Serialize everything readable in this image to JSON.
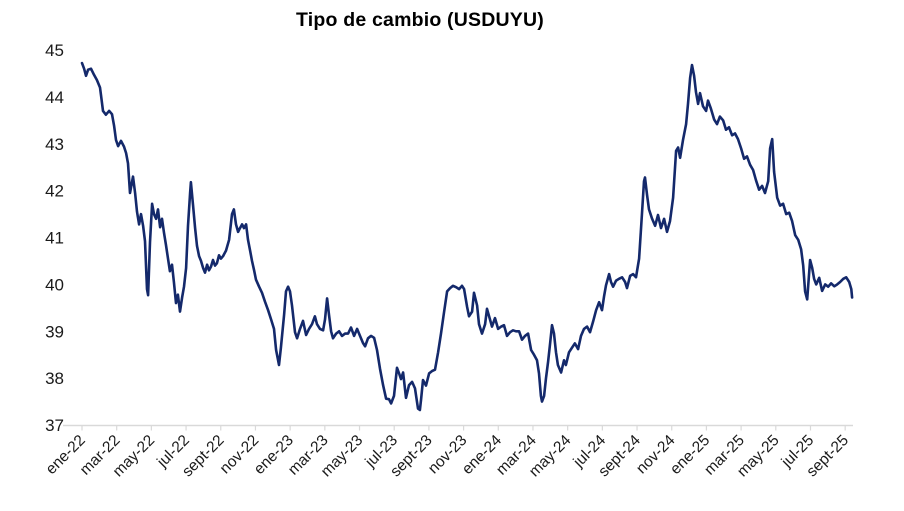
{
  "chart_data": {
    "type": "line",
    "title": "Tipo de cambio (USDUYU)",
    "xlabel": "",
    "ylabel": "",
    "ylim": [
      37,
      45
    ],
    "y_ticks": [
      37,
      38,
      39,
      40,
      41,
      42,
      43,
      44,
      45
    ],
    "x_tick_labels": [
      "ene-22",
      "mar-22",
      "may-22",
      "jul-22",
      "sept-22",
      "nov-22",
      "ene-23",
      "mar-23",
      "may-23",
      "jul-23",
      "sept-23",
      "nov-23",
      "ene-24",
      "mar-24",
      "may-24",
      "jul-24",
      "sept-24",
      "nov-24",
      "ene-25",
      "mar-25",
      "may-25",
      "jul-25",
      "sept-25"
    ],
    "x_unit": "months since ene-22, labels every 2 months",
    "grid": "off",
    "legend": "none",
    "axis_color": "#D9D9D9",
    "series": [
      {
        "name": "USDUYU",
        "color": "#14296B",
        "points": [
          [
            0.0,
            44.72
          ],
          [
            0.12,
            44.6
          ],
          [
            0.23,
            44.45
          ],
          [
            0.35,
            44.58
          ],
          [
            0.52,
            44.6
          ],
          [
            0.69,
            44.47
          ],
          [
            0.86,
            44.36
          ],
          [
            1.04,
            44.2
          ],
          [
            1.1,
            44.02
          ],
          [
            1.21,
            43.7
          ],
          [
            1.38,
            43.62
          ],
          [
            1.56,
            43.7
          ],
          [
            1.73,
            43.63
          ],
          [
            1.85,
            43.38
          ],
          [
            1.96,
            43.08
          ],
          [
            2.08,
            42.95
          ],
          [
            2.25,
            43.06
          ],
          [
            2.42,
            42.94
          ],
          [
            2.54,
            42.8
          ],
          [
            2.65,
            42.58
          ],
          [
            2.77,
            41.95
          ],
          [
            2.94,
            42.3
          ],
          [
            3.06,
            41.95
          ],
          [
            3.17,
            41.55
          ],
          [
            3.29,
            41.28
          ],
          [
            3.4,
            41.5
          ],
          [
            3.52,
            41.25
          ],
          [
            3.63,
            40.92
          ],
          [
            3.75,
            39.9
          ],
          [
            3.81,
            39.77
          ],
          [
            3.92,
            40.9
          ],
          [
            4.04,
            41.72
          ],
          [
            4.15,
            41.5
          ],
          [
            4.27,
            41.4
          ],
          [
            4.38,
            41.6
          ],
          [
            4.5,
            41.22
          ],
          [
            4.61,
            41.4
          ],
          [
            4.73,
            41.1
          ],
          [
            4.84,
            40.85
          ],
          [
            4.96,
            40.55
          ],
          [
            5.07,
            40.28
          ],
          [
            5.19,
            40.42
          ],
          [
            5.3,
            40.05
          ],
          [
            5.42,
            39.6
          ],
          [
            5.53,
            39.78
          ],
          [
            5.65,
            39.42
          ],
          [
            5.77,
            39.72
          ],
          [
            5.88,
            39.95
          ],
          [
            6.0,
            40.35
          ],
          [
            6.11,
            41.25
          ],
          [
            6.23,
            41.95
          ],
          [
            6.28,
            42.18
          ],
          [
            6.4,
            41.7
          ],
          [
            6.52,
            41.2
          ],
          [
            6.63,
            40.82
          ],
          [
            6.75,
            40.6
          ],
          [
            6.86,
            40.5
          ],
          [
            6.98,
            40.35
          ],
          [
            7.09,
            40.25
          ],
          [
            7.21,
            40.42
          ],
          [
            7.32,
            40.3
          ],
          [
            7.44,
            40.38
          ],
          [
            7.55,
            40.52
          ],
          [
            7.67,
            40.4
          ],
          [
            7.78,
            40.45
          ],
          [
            7.9,
            40.62
          ],
          [
            8.01,
            40.55
          ],
          [
            8.13,
            40.6
          ],
          [
            8.3,
            40.72
          ],
          [
            8.48,
            40.95
          ],
          [
            8.65,
            41.5
          ],
          [
            8.76,
            41.6
          ],
          [
            8.88,
            41.28
          ],
          [
            9.0,
            41.12
          ],
          [
            9.11,
            41.2
          ],
          [
            9.23,
            41.28
          ],
          [
            9.34,
            41.2
          ],
          [
            9.46,
            41.28
          ],
          [
            9.57,
            40.95
          ],
          [
            9.69,
            40.72
          ],
          [
            9.8,
            40.5
          ],
          [
            9.92,
            40.3
          ],
          [
            10.03,
            40.1
          ],
          [
            10.21,
            39.95
          ],
          [
            10.38,
            39.82
          ],
          [
            10.55,
            39.63
          ],
          [
            10.73,
            39.45
          ],
          [
            10.9,
            39.25
          ],
          [
            11.07,
            39.05
          ],
          [
            11.19,
            38.6
          ],
          [
            11.36,
            38.28
          ],
          [
            11.47,
            38.65
          ],
          [
            11.65,
            39.35
          ],
          [
            11.76,
            39.85
          ],
          [
            11.88,
            39.95
          ],
          [
            11.99,
            39.85
          ],
          [
            12.11,
            39.55
          ],
          [
            12.28,
            38.98
          ],
          [
            12.4,
            38.85
          ],
          [
            12.57,
            39.05
          ],
          [
            12.74,
            39.22
          ],
          [
            12.92,
            38.92
          ],
          [
            13.09,
            39.05
          ],
          [
            13.26,
            39.15
          ],
          [
            13.43,
            39.32
          ],
          [
            13.55,
            39.15
          ],
          [
            13.72,
            39.05
          ],
          [
            13.9,
            39.02
          ],
          [
            14.01,
            39.25
          ],
          [
            14.13,
            39.7
          ],
          [
            14.24,
            39.35
          ],
          [
            14.36,
            39.0
          ],
          [
            14.47,
            38.85
          ],
          [
            14.65,
            38.95
          ],
          [
            14.82,
            39.0
          ],
          [
            14.99,
            38.9
          ],
          [
            15.17,
            38.95
          ],
          [
            15.34,
            38.95
          ],
          [
            15.51,
            39.08
          ],
          [
            15.69,
            38.9
          ],
          [
            15.86,
            39.05
          ],
          [
            16.03,
            38.9
          ],
          [
            16.2,
            38.75
          ],
          [
            16.32,
            38.68
          ],
          [
            16.49,
            38.85
          ],
          [
            16.66,
            38.9
          ],
          [
            16.84,
            38.86
          ],
          [
            17.01,
            38.6
          ],
          [
            17.18,
            38.2
          ],
          [
            17.36,
            37.85
          ],
          [
            17.53,
            37.56
          ],
          [
            17.7,
            37.55
          ],
          [
            17.82,
            37.46
          ],
          [
            17.99,
            37.62
          ],
          [
            18.16,
            38.22
          ],
          [
            18.28,
            38.1
          ],
          [
            18.39,
            37.98
          ],
          [
            18.51,
            38.12
          ],
          [
            18.68,
            37.58
          ],
          [
            18.85,
            37.85
          ],
          [
            19.03,
            37.92
          ],
          [
            19.2,
            37.78
          ],
          [
            19.37,
            37.35
          ],
          [
            19.48,
            37.32
          ],
          [
            19.55,
            37.55
          ],
          [
            19.66,
            37.96
          ],
          [
            19.83,
            37.84
          ],
          [
            20.01,
            38.1
          ],
          [
            20.18,
            38.15
          ],
          [
            20.35,
            38.18
          ],
          [
            20.53,
            38.55
          ],
          [
            20.7,
            38.95
          ],
          [
            20.87,
            39.4
          ],
          [
            21.05,
            39.85
          ],
          [
            21.22,
            39.92
          ],
          [
            21.39,
            39.97
          ],
          [
            21.57,
            39.94
          ],
          [
            21.74,
            39.9
          ],
          [
            21.91,
            39.97
          ],
          [
            22.03,
            39.9
          ],
          [
            22.2,
            39.52
          ],
          [
            22.31,
            39.32
          ],
          [
            22.49,
            39.42
          ],
          [
            22.6,
            39.82
          ],
          [
            22.78,
            39.55
          ],
          [
            22.89,
            39.15
          ],
          [
            23.06,
            38.95
          ],
          [
            23.24,
            39.15
          ],
          [
            23.35,
            39.48
          ],
          [
            23.52,
            39.25
          ],
          [
            23.64,
            39.1
          ],
          [
            23.81,
            39.28
          ],
          [
            23.99,
            39.05
          ],
          [
            24.16,
            39.1
          ],
          [
            24.33,
            39.13
          ],
          [
            24.5,
            38.9
          ],
          [
            24.68,
            38.98
          ],
          [
            24.85,
            39.02
          ],
          [
            25.02,
            39.0
          ],
          [
            25.2,
            39.0
          ],
          [
            25.37,
            38.82
          ],
          [
            25.54,
            38.9
          ],
          [
            25.72,
            38.95
          ],
          [
            25.89,
            38.6
          ],
          [
            26.06,
            38.5
          ],
          [
            26.23,
            38.38
          ],
          [
            26.35,
            38.1
          ],
          [
            26.46,
            37.62
          ],
          [
            26.52,
            37.5
          ],
          [
            26.64,
            37.62
          ],
          [
            26.75,
            38.0
          ],
          [
            26.87,
            38.35
          ],
          [
            26.98,
            38.72
          ],
          [
            27.1,
            39.13
          ],
          [
            27.21,
            38.95
          ],
          [
            27.33,
            38.55
          ],
          [
            27.44,
            38.28
          ],
          [
            27.62,
            38.12
          ],
          [
            27.79,
            38.38
          ],
          [
            27.9,
            38.28
          ],
          [
            28.08,
            38.55
          ],
          [
            28.25,
            38.65
          ],
          [
            28.42,
            38.74
          ],
          [
            28.6,
            38.62
          ],
          [
            28.77,
            38.9
          ],
          [
            28.94,
            39.05
          ],
          [
            29.12,
            39.1
          ],
          [
            29.29,
            38.98
          ],
          [
            29.46,
            39.2
          ],
          [
            29.64,
            39.45
          ],
          [
            29.81,
            39.62
          ],
          [
            29.98,
            39.45
          ],
          [
            30.1,
            39.75
          ],
          [
            30.21,
            39.98
          ],
          [
            30.39,
            40.22
          ],
          [
            30.5,
            40.05
          ],
          [
            30.62,
            39.95
          ],
          [
            30.79,
            40.08
          ],
          [
            30.96,
            40.12
          ],
          [
            31.14,
            40.15
          ],
          [
            31.31,
            40.05
          ],
          [
            31.42,
            39.92
          ],
          [
            31.6,
            40.18
          ],
          [
            31.77,
            40.22
          ],
          [
            31.94,
            40.15
          ],
          [
            32.12,
            40.55
          ],
          [
            32.29,
            41.55
          ],
          [
            32.4,
            42.2
          ],
          [
            32.46,
            42.28
          ],
          [
            32.58,
            41.9
          ],
          [
            32.69,
            41.6
          ],
          [
            32.87,
            41.4
          ],
          [
            33.04,
            41.25
          ],
          [
            33.21,
            41.48
          ],
          [
            33.38,
            41.2
          ],
          [
            33.56,
            41.4
          ],
          [
            33.73,
            41.12
          ],
          [
            33.9,
            41.35
          ],
          [
            34.08,
            41.85
          ],
          [
            34.25,
            42.85
          ],
          [
            34.37,
            42.92
          ],
          [
            34.48,
            42.7
          ],
          [
            34.65,
            43.08
          ],
          [
            34.83,
            43.42
          ],
          [
            34.94,
            43.85
          ],
          [
            35.06,
            44.4
          ],
          [
            35.17,
            44.68
          ],
          [
            35.29,
            44.45
          ],
          [
            35.4,
            44.1
          ],
          [
            35.52,
            43.85
          ],
          [
            35.63,
            44.08
          ],
          [
            35.8,
            43.8
          ],
          [
            35.98,
            43.7
          ],
          [
            36.09,
            43.92
          ],
          [
            36.26,
            43.75
          ],
          [
            36.44,
            43.52
          ],
          [
            36.61,
            43.42
          ],
          [
            36.78,
            43.58
          ],
          [
            36.96,
            43.5
          ],
          [
            37.13,
            43.3
          ],
          [
            37.3,
            43.35
          ],
          [
            37.48,
            43.18
          ],
          [
            37.65,
            43.22
          ],
          [
            37.82,
            43.1
          ],
          [
            38.0,
            42.9
          ],
          [
            38.17,
            42.68
          ],
          [
            38.34,
            42.73
          ],
          [
            38.52,
            42.55
          ],
          [
            38.69,
            42.44
          ],
          [
            38.86,
            42.22
          ],
          [
            39.04,
            42.02
          ],
          [
            39.21,
            42.1
          ],
          [
            39.38,
            41.95
          ],
          [
            39.56,
            42.2
          ],
          [
            39.67,
            42.9
          ],
          [
            39.79,
            43.1
          ],
          [
            39.9,
            42.4
          ],
          [
            40.08,
            41.85
          ],
          [
            40.25,
            41.68
          ],
          [
            40.42,
            41.72
          ],
          [
            40.6,
            41.5
          ],
          [
            40.77,
            41.53
          ],
          [
            40.94,
            41.35
          ],
          [
            41.12,
            41.05
          ],
          [
            41.29,
            40.95
          ],
          [
            41.46,
            40.75
          ],
          [
            41.58,
            40.4
          ],
          [
            41.69,
            39.85
          ],
          [
            41.81,
            39.68
          ],
          [
            41.98,
            40.52
          ],
          [
            42.1,
            40.35
          ],
          [
            42.21,
            40.12
          ],
          [
            42.33,
            40.0
          ],
          [
            42.5,
            40.14
          ],
          [
            42.67,
            39.86
          ],
          [
            42.85,
            40.0
          ],
          [
            43.02,
            39.95
          ],
          [
            43.19,
            40.02
          ],
          [
            43.37,
            39.96
          ],
          [
            43.54,
            40.0
          ],
          [
            43.71,
            40.05
          ],
          [
            43.89,
            40.12
          ],
          [
            44.06,
            40.15
          ],
          [
            44.23,
            40.05
          ],
          [
            44.35,
            39.9
          ],
          [
            44.4,
            39.72
          ]
        ]
      }
    ]
  }
}
